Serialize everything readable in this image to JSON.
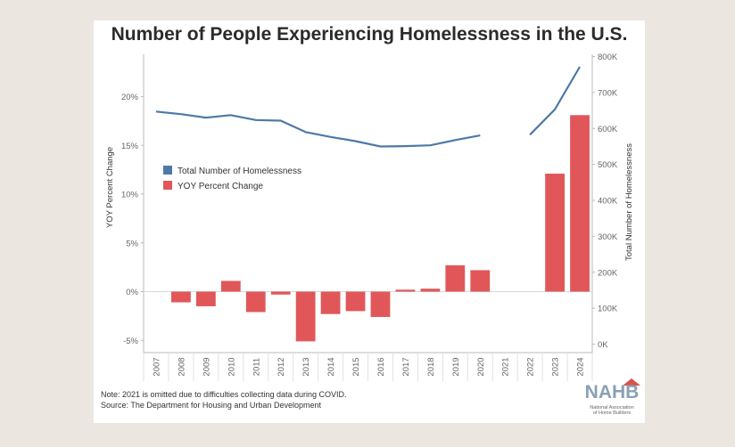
{
  "chart_data": {
    "type": "bar+line",
    "title": "Number of People Experiencing Homelessness in the U.S.",
    "categories": [
      "2007",
      "2008",
      "2009",
      "2010",
      "2011",
      "2012",
      "2013",
      "2014",
      "2015",
      "2016",
      "2017",
      "2018",
      "2019",
      "2020",
      "2021",
      "2022",
      "2023",
      "2024"
    ],
    "series": [
      {
        "name": "Total Number of Homelessness",
        "chart": "line",
        "axis": "right",
        "color": "#4e79a7",
        "values": [
          647000,
          639800,
          630200,
          637100,
          623400,
          621600,
          590000,
          576400,
          564700,
          549900,
          550900,
          553000,
          567700,
          580500,
          null,
          582500,
          653100,
          771500
        ]
      },
      {
        "name": "YOY Percent Change",
        "chart": "bar",
        "axis": "left",
        "color": "#e15759",
        "values": [
          null,
          -1.1,
          -1.5,
          1.1,
          -2.1,
          -0.3,
          -5.1,
          -2.3,
          -2.0,
          -2.6,
          0.2,
          0.3,
          2.7,
          2.2,
          null,
          null,
          12.1,
          18.1
        ]
      }
    ],
    "y_left": {
      "label": "YOY Percent Change",
      "ticks": [
        "20%",
        "15%",
        "10%",
        "5%",
        "0%",
        "-5%"
      ],
      "tick_values": [
        20,
        15,
        10,
        5,
        0,
        -5
      ],
      "range": [
        -6,
        25
      ]
    },
    "y_right": {
      "label": "Total Number of Homelessness",
      "ticks": [
        "800K",
        "700K",
        "600K",
        "500K",
        "400K",
        "300K",
        "200K",
        "100K",
        "0K"
      ],
      "tick_values": [
        800000,
        700000,
        600000,
        500000,
        400000,
        300000,
        200000,
        100000,
        0
      ],
      "range": [
        0,
        800000
      ]
    },
    "legend": "top-left",
    "grid": false
  },
  "footer": {
    "note": "Note: 2021 is omitted due to difficulties collecting data during COVID.",
    "source": "Source: The Department for Housing and Urban Development"
  },
  "logo": {
    "name": "NAHB",
    "subtitle_line1": "National Association",
    "subtitle_line2": "of Home Builders"
  }
}
